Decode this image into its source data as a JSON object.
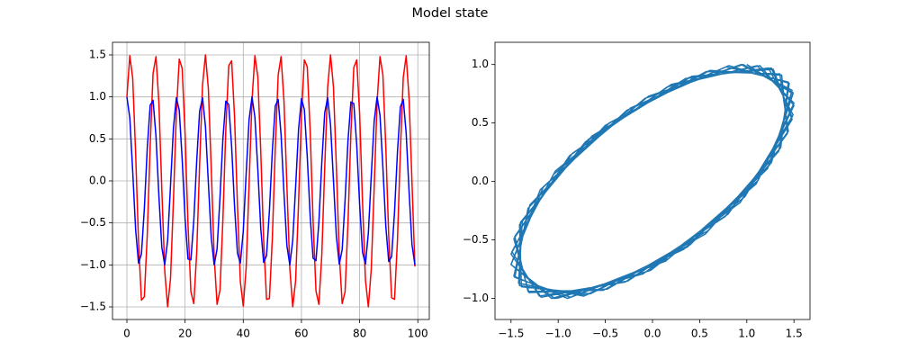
{
  "title": "Model state",
  "chart_data": [
    {
      "type": "line",
      "grid": true,
      "xlim": [
        -4.95,
        103.95
      ],
      "ylim": [
        -1.65,
        1.65
      ],
      "xticks": [
        0,
        20,
        40,
        60,
        80,
        100
      ],
      "yticks": [
        {
          "value": -1.5,
          "label": "−1.5"
        },
        {
          "value": -1.0,
          "label": "−1.0"
        },
        {
          "value": -0.5,
          "label": "−0.5"
        },
        {
          "value": 0,
          "label": "0.0"
        },
        0.5,
        {
          "value": 1.0,
          "label": "1.0"
        },
        1.5
      ],
      "x": [
        0,
        1,
        2,
        3,
        4,
        5,
        6,
        7,
        8,
        9,
        10,
        11,
        12,
        13,
        14,
        15,
        16,
        17,
        18,
        19,
        20,
        21,
        22,
        23,
        24,
        25,
        26,
        27,
        28,
        29,
        30,
        31,
        32,
        33,
        34,
        35,
        36,
        37,
        38,
        39,
        40,
        41,
        42,
        43,
        44,
        45,
        46,
        47,
        48,
        49,
        50,
        51,
        52,
        53,
        54,
        55,
        56,
        57,
        58,
        59,
        60,
        61,
        62,
        63,
        64,
        65,
        66,
        67,
        68,
        69,
        70,
        71,
        72,
        73,
        74,
        75,
        76,
        77,
        78,
        79,
        80,
        81,
        82,
        83,
        84,
        85,
        86,
        87,
        88,
        89,
        90,
        91,
        92,
        93,
        94,
        95,
        96,
        97,
        98,
        99
      ],
      "series": [
        {
          "color": "red",
          "values": [
            1.0,
            1.49,
            1.22,
            0.33,
            -0.73,
            -1.42,
            -1.38,
            -0.64,
            0.42,
            1.28,
            1.48,
            0.93,
            -0.1,
            -1.07,
            -1.5,
            -1.16,
            -0.23,
            0.81,
            1.45,
            1.34,
            0.56,
            -0.52,
            -1.32,
            -1.46,
            -0.85,
            0.2,
            1.14,
            1.5,
            1.1,
            0.14,
            -0.9,
            -1.47,
            -1.3,
            -0.46,
            0.61,
            1.37,
            1.43,
            0.77,
            -0.29,
            -1.2,
            -1.49,
            -1.03,
            -0.04,
            0.96,
            1.49,
            1.24,
            0.37,
            -0.7,
            -1.41,
            -1.4,
            -0.68,
            0.39,
            1.26,
            1.48,
            0.95,
            -0.06,
            -1.04,
            -1.5,
            -1.19,
            -0.27,
            0.78,
            1.44,
            1.36,
            0.59,
            -0.48,
            -1.31,
            -1.47,
            -0.88,
            0.16,
            1.11,
            1.5,
            1.12,
            0.17,
            -0.87,
            -1.46,
            -1.32,
            -0.5,
            0.57,
            1.35,
            1.44,
            0.8,
            -0.26,
            -1.18,
            -1.5,
            -1.05,
            -0.08,
            0.94,
            1.48,
            1.26,
            0.4,
            -0.66,
            -1.39,
            -1.41,
            -0.71,
            0.35,
            1.23,
            1.49,
            0.98,
            -0.02,
            -1.02
          ]
        },
        {
          "color": "blue",
          "values": [
            1.0,
            0.75,
            0.11,
            -0.58,
            -0.98,
            -0.87,
            -0.33,
            0.39,
            0.9,
            0.96,
            0.53,
            -0.18,
            -0.79,
            -1.0,
            -0.71,
            -0.05,
            0.63,
            0.99,
            0.84,
            0.26,
            -0.45,
            -0.93,
            -0.94,
            -0.47,
            0.24,
            0.83,
            0.99,
            0.65,
            -0.02,
            -0.68,
            -1.0,
            -0.81,
            -0.2,
            0.5,
            0.95,
            0.91,
            0.41,
            -0.3,
            -0.86,
            -0.98,
            -0.6,
            0.09,
            0.73,
            1.0,
            0.76,
            0.14,
            -0.56,
            -0.97,
            -0.89,
            -0.35,
            0.36,
            0.89,
            0.97,
            0.55,
            -0.15,
            -0.77,
            -1.0,
            -0.71,
            -0.07,
            0.61,
            0.98,
            0.85,
            0.29,
            -0.42,
            -0.92,
            -0.95,
            -0.49,
            0.22,
            0.81,
            0.99,
            0.67,
            0.01,
            -0.66,
            -0.99,
            -0.82,
            -0.23,
            0.48,
            0.94,
            0.92,
            0.43,
            -0.28,
            -0.85,
            -0.99,
            -0.62,
            0.06,
            0.71,
            1.0,
            0.78,
            0.16,
            -0.54,
            -0.96,
            -0.9,
            -0.37,
            0.34,
            0.88,
            0.97,
            0.57,
            -0.13,
            -0.76,
            -1.0
          ]
        }
      ]
    },
    {
      "type": "line",
      "grid": false,
      "xlim": [
        -1.67,
        1.67
      ],
      "ylim": [
        -1.18,
        1.19
      ],
      "xticks": [
        {
          "value": -1.5,
          "label": "−1.5"
        },
        {
          "value": -1.0,
          "label": "−1.0"
        },
        {
          "value": -0.5,
          "label": "−0.5"
        },
        {
          "value": 0,
          "label": "0.0"
        },
        0.5,
        {
          "value": 1.0,
          "label": "1.0"
        },
        1.5
      ],
      "yticks": [
        {
          "value": -1.0,
          "label": "−1.0"
        },
        {
          "value": -0.5,
          "label": "−0.5"
        },
        {
          "value": 0,
          "label": "0.0"
        },
        0.5,
        {
          "value": 1.0,
          "label": "1.0"
        }
      ],
      "x": [
        1.0,
        1.49,
        1.22,
        0.33,
        -0.73,
        -1.42,
        -1.38,
        -0.64,
        0.42,
        1.28,
        1.48,
        0.93,
        -0.1,
        -1.07,
        -1.5,
        -1.16,
        -0.23,
        0.81,
        1.45,
        1.34,
        0.56,
        -0.52,
        -1.32,
        -1.46,
        -0.85,
        0.2,
        1.14,
        1.5,
        1.1,
        0.14,
        -0.9,
        -1.47,
        -1.3,
        -0.46,
        0.61,
        1.37,
        1.43,
        0.77,
        -0.29,
        -1.2,
        -1.49,
        -1.03,
        -0.04,
        0.96,
        1.49,
        1.24,
        0.37,
        -0.7,
        -1.41,
        -1.4,
        -0.68,
        0.39,
        1.26,
        1.48,
        0.95,
        -0.06,
        -1.04,
        -1.5,
        -1.19,
        -0.27,
        0.78,
        1.44,
        1.36,
        0.59,
        -0.48,
        -1.31,
        -1.47,
        -0.88,
        0.16,
        1.11,
        1.5,
        1.12,
        0.17,
        -0.87,
        -1.46,
        -1.32,
        -0.5,
        0.57,
        1.35,
        1.44,
        0.8,
        -0.26,
        -1.18,
        -1.5,
        -1.05,
        -0.08,
        0.94,
        1.48,
        1.26,
        0.4,
        -0.66,
        -1.39,
        -1.41,
        -0.71,
        0.35,
        1.23,
        1.49,
        0.98,
        -0.02,
        -1.02
      ],
      "series": [
        {
          "color": "#1f77b4",
          "values": [
            1.0,
            0.75,
            0.11,
            -0.58,
            -0.98,
            -0.87,
            -0.33,
            0.39,
            0.9,
            0.96,
            0.53,
            -0.18,
            -0.79,
            -1.0,
            -0.71,
            -0.05,
            0.63,
            0.99,
            0.84,
            0.26,
            -0.45,
            -0.93,
            -0.94,
            -0.47,
            0.24,
            0.83,
            0.99,
            0.65,
            -0.02,
            -0.68,
            -1.0,
            -0.81,
            -0.2,
            0.5,
            0.95,
            0.91,
            0.41,
            -0.3,
            -0.86,
            -0.98,
            -0.6,
            0.09,
            0.73,
            1.0,
            0.76,
            0.14,
            -0.56,
            -0.97,
            -0.89,
            -0.35,
            0.36,
            0.89,
            0.97,
            0.55,
            -0.15,
            -0.77,
            -1.0,
            -0.71,
            -0.07,
            0.61,
            0.98,
            0.85,
            0.29,
            -0.42,
            -0.92,
            -0.95,
            -0.49,
            0.22,
            0.81,
            0.99,
            0.67,
            0.01,
            -0.66,
            -0.99,
            -0.82,
            -0.23,
            0.48,
            0.94,
            0.92,
            0.43,
            -0.28,
            -0.85,
            -0.99,
            -0.62,
            0.06,
            0.71,
            1.0,
            0.78,
            0.16,
            -0.54,
            -0.96,
            -0.9,
            -0.37,
            0.34,
            0.88,
            0.97,
            0.57,
            -0.13,
            -0.76,
            -1.0
          ]
        }
      ]
    }
  ]
}
